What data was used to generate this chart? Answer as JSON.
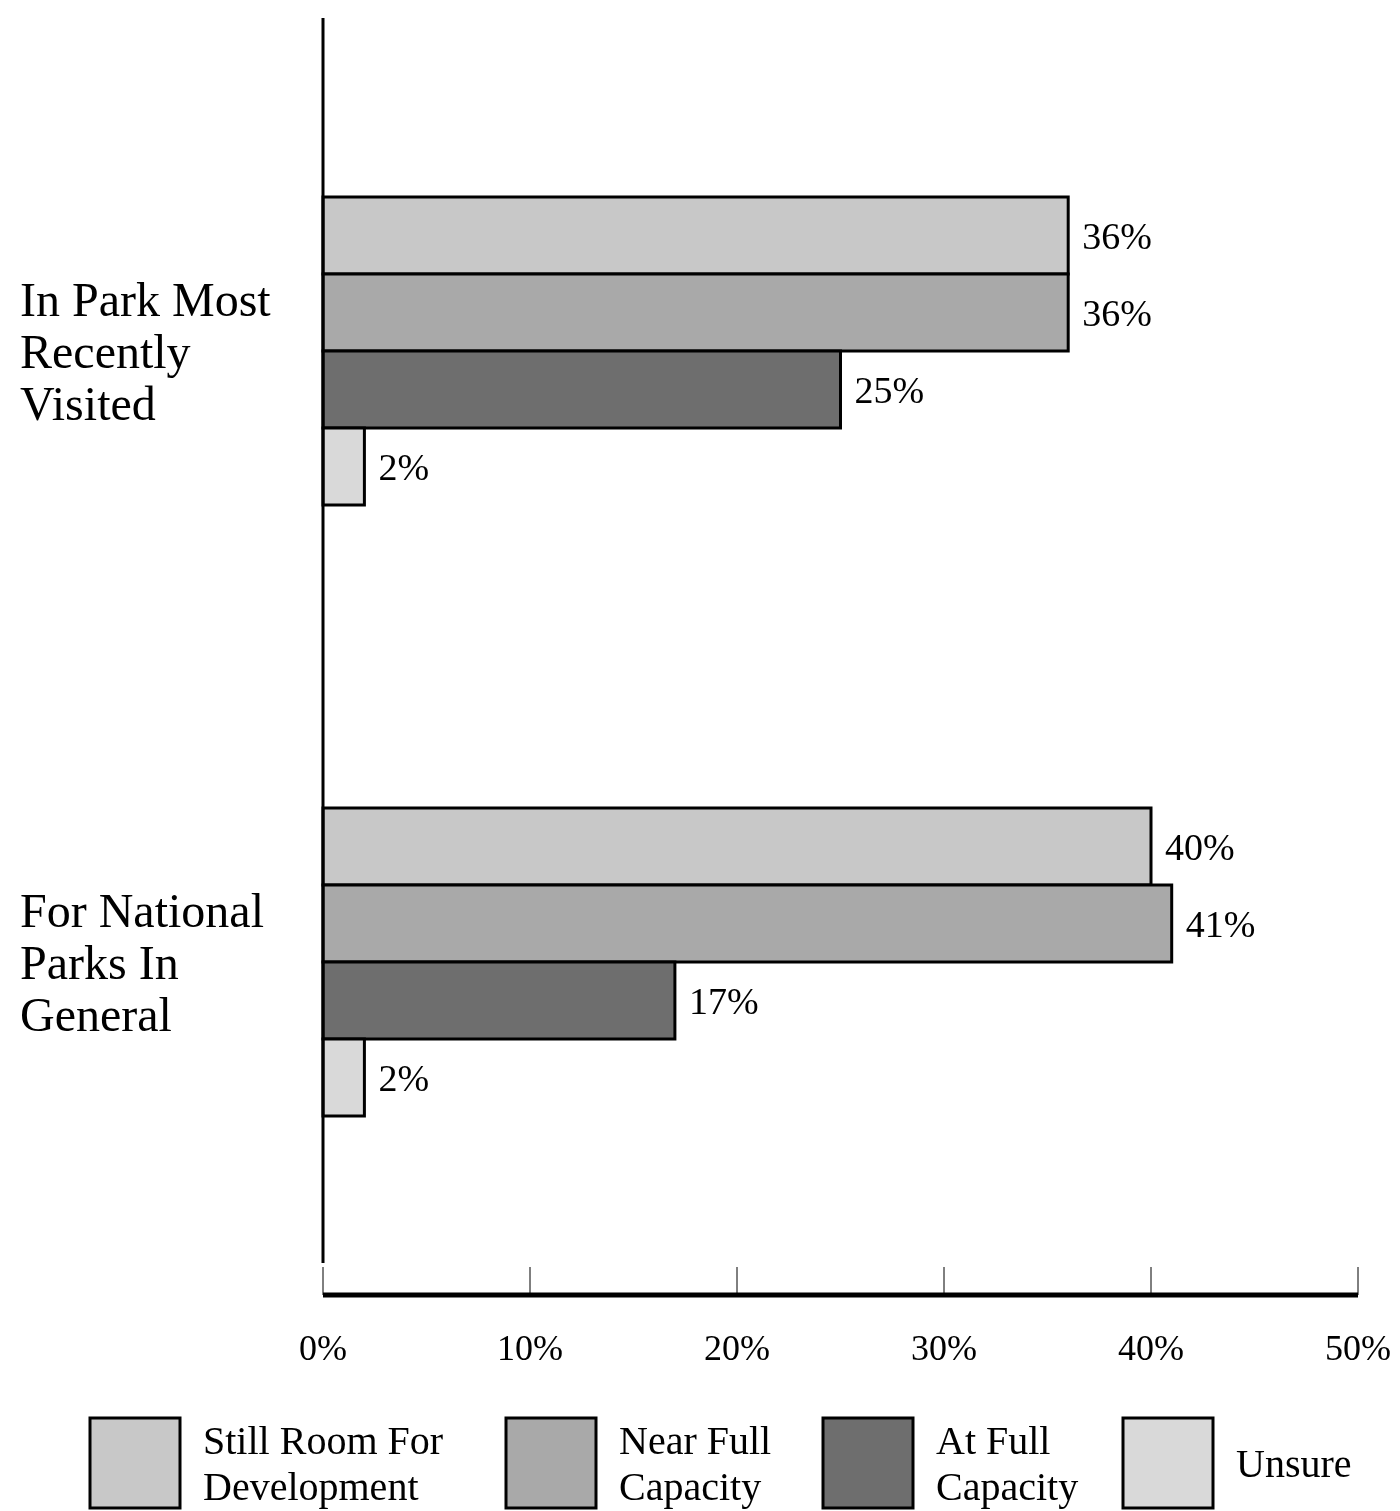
{
  "chart_data": {
    "type": "bar",
    "orientation": "horizontal",
    "categories": [
      "In Park Most Recently Visited",
      "For National Parks In General"
    ],
    "series": [
      {
        "name": "Still Room For Development",
        "color": "#c8c8c8",
        "values": [
          36,
          40
        ],
        "value_labels": [
          "36%",
          "40%"
        ]
      },
      {
        "name": "Near Full Capacity",
        "color": "#a9a9a9",
        "values": [
          36,
          41
        ],
        "value_labels": [
          "36%",
          "41%"
        ]
      },
      {
        "name": "At Full Capacity",
        "color": "#6e6e6e",
        "values": [
          25,
          17
        ],
        "value_labels": [
          "25%",
          "17%"
        ]
      },
      {
        "name": "Unsure",
        "color": "#d9d9d9",
        "values": [
          2,
          2
        ],
        "value_labels": [
          "2%",
          "2%"
        ]
      }
    ],
    "xlim": [
      0,
      50
    ],
    "xticks": [
      {
        "value": 0,
        "label": "0%"
      },
      {
        "value": 10,
        "label": "10%"
      },
      {
        "value": 20,
        "label": "20%"
      },
      {
        "value": 30,
        "label": "30%"
      },
      {
        "value": 40,
        "label": "40%"
      },
      {
        "value": 50,
        "label": "50%"
      }
    ],
    "grid": false,
    "legend": "bottom"
  }
}
